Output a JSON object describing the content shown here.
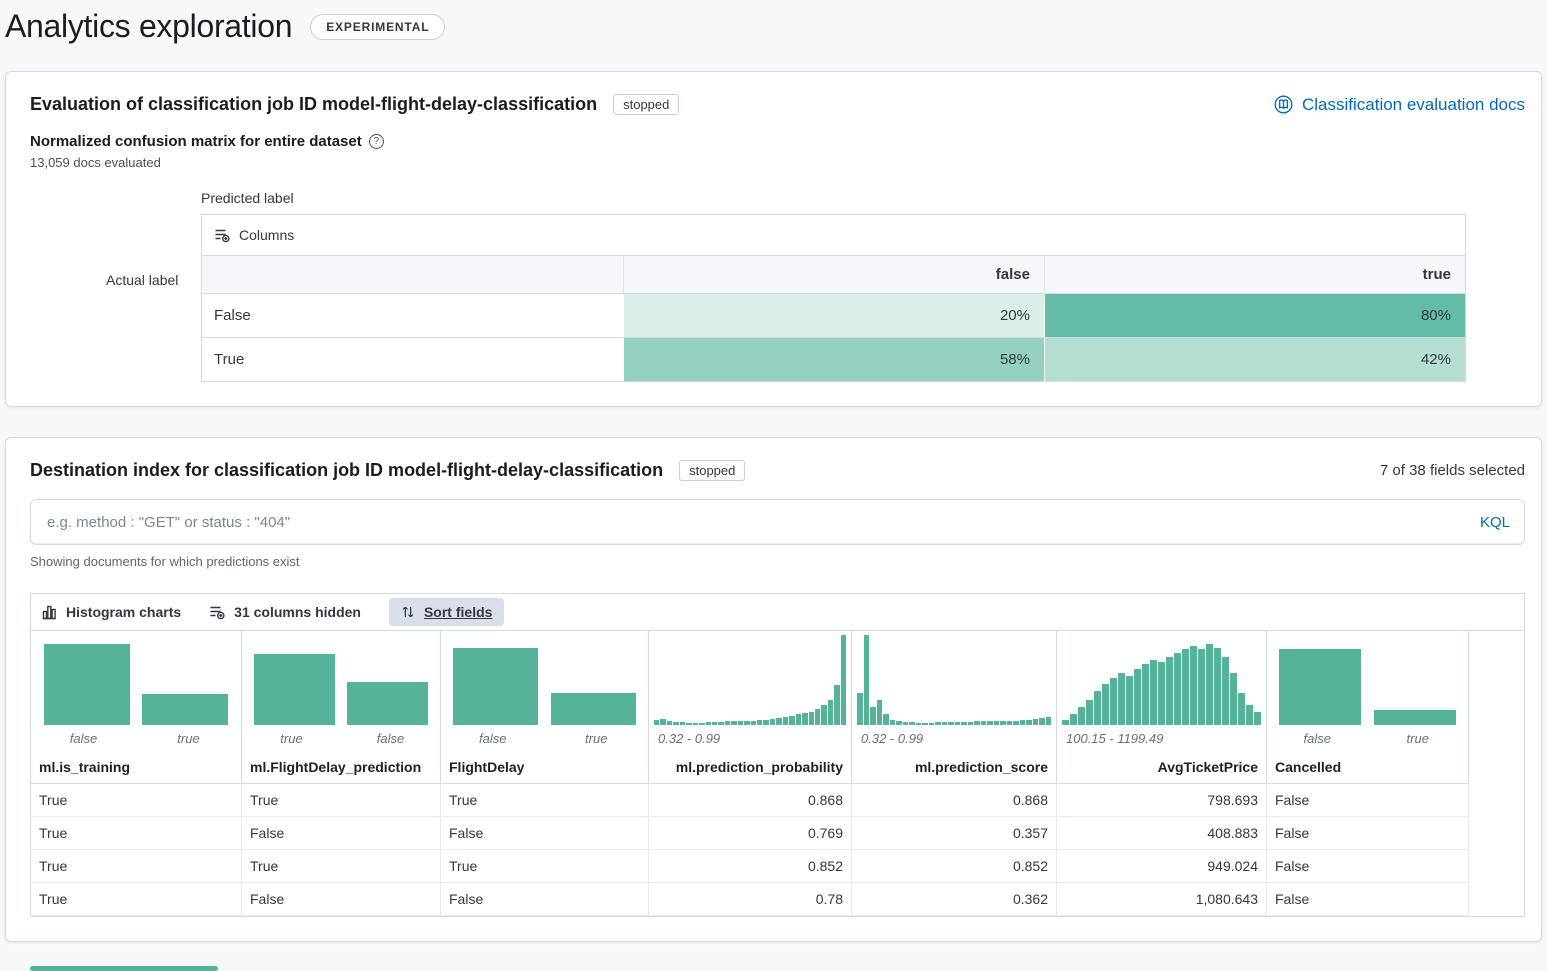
{
  "colors": {
    "accent_teal": "#54b399",
    "link_blue": "#006bb4"
  },
  "page": {
    "title": "Analytics exploration",
    "experimental_badge": "EXPERIMENTAL"
  },
  "evaluation": {
    "title": "Evaluation of classification job ID model-flight-delay-classification",
    "status": "stopped",
    "docs_link": "Classification evaluation docs",
    "matrix_heading": "Normalized confusion matrix for entire dataset",
    "docs_evaluated": "13,059 docs evaluated",
    "predicted_label": "Predicted label",
    "actual_label": "Actual label",
    "columns_button": "Columns",
    "matrix": {
      "column_headers": [
        "false",
        "true"
      ],
      "rows": [
        {
          "label": "False",
          "cells": [
            {
              "text": "20%",
              "bg": "#d9efe8"
            },
            {
              "text": "80%",
              "bg": "#63bda6"
            }
          ]
        },
        {
          "label": "True",
          "cells": [
            {
              "text": "58%",
              "bg": "#94d1c1"
            },
            {
              "text": "42%",
              "bg": "#b5ded3"
            }
          ]
        }
      ]
    }
  },
  "destination": {
    "title": "Destination index for classification job ID model-flight-delay-classification",
    "status": "stopped",
    "fields_selected": "7 of 38 fields selected",
    "search": {
      "placeholder": "e.g. method : \"GET\" or status : \"404\"",
      "language": "KQL"
    },
    "showing_text": "Showing documents for which predictions exist",
    "toolbar": {
      "histogram_charts": "Histogram charts",
      "columns_hidden": "31 columns hidden",
      "sort_fields": "Sort fields"
    },
    "grid": {
      "columns": [
        {
          "name": "ml.is_training",
          "align": "left",
          "type": "category",
          "labels": [
            "false",
            "true"
          ],
          "bars": [
            90,
            34
          ]
        },
        {
          "name": "ml.FlightDelay_prediction",
          "align": "left",
          "type": "category",
          "labels": [
            "true",
            "false"
          ],
          "bars": [
            79,
            48
          ]
        },
        {
          "name": "FlightDelay",
          "align": "left",
          "type": "category",
          "labels": [
            "false",
            "true"
          ],
          "bars": [
            86,
            36
          ]
        },
        {
          "name": "ml.prediction_probability",
          "align": "right",
          "type": "histogram",
          "range": "0.32 - 0.99",
          "bars": [
            6,
            7,
            4,
            3,
            3,
            2,
            2,
            2,
            3,
            3,
            3,
            4,
            4,
            4,
            5,
            5,
            6,
            6,
            7,
            8,
            9,
            10,
            12,
            13,
            15,
            18,
            22,
            28,
            45,
            100
          ]
        },
        {
          "name": "ml.prediction_score",
          "align": "right",
          "type": "histogram",
          "range": "0.32 - 0.99",
          "bars": [
            36,
            100,
            20,
            28,
            12,
            6,
            4,
            3,
            3,
            2,
            2,
            2,
            3,
            3,
            3,
            3,
            3,
            3,
            4,
            4,
            4,
            4,
            5,
            5,
            5,
            6,
            6,
            7,
            8,
            9
          ]
        },
        {
          "name": "AvgTicketPrice",
          "align": "right",
          "type": "histogram",
          "range": "100.15 - 1199.49",
          "bars": [
            6,
            12,
            20,
            28,
            38,
            46,
            52,
            58,
            54,
            62,
            68,
            72,
            70,
            76,
            80,
            84,
            88,
            84,
            90,
            86,
            76,
            58,
            36,
            22,
            14
          ]
        },
        {
          "name": "Cancelled",
          "align": "left",
          "type": "category",
          "labels": [
            "false",
            "true"
          ],
          "bars": [
            84,
            17
          ]
        }
      ],
      "rows": [
        [
          "True",
          "True",
          "True",
          "0.868",
          "0.868",
          "798.693",
          "False"
        ],
        [
          "True",
          "False",
          "False",
          "0.769",
          "0.357",
          "408.883",
          "False"
        ],
        [
          "True",
          "True",
          "True",
          "0.852",
          "0.852",
          "949.024",
          "False"
        ],
        [
          "True",
          "False",
          "False",
          "0.78",
          "0.362",
          "1,080.643",
          "False"
        ]
      ]
    }
  }
}
